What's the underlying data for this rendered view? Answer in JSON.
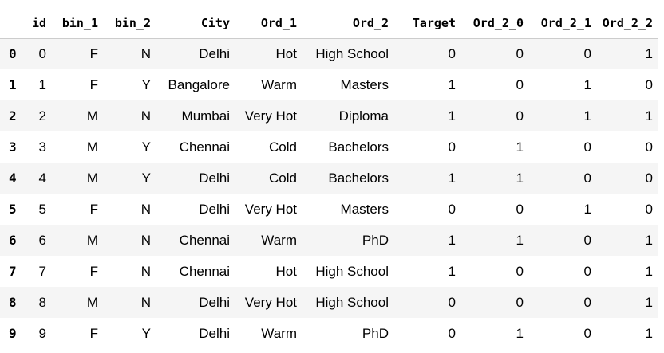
{
  "table": {
    "index_header": "",
    "columns": [
      "id",
      "bin_1",
      "bin_2",
      "City",
      "Ord_1",
      "Ord_2",
      "Target",
      "Ord_2_0",
      "Ord_2_1",
      "Ord_2_2"
    ],
    "rows": [
      {
        "index": "0",
        "cells": [
          "0",
          "F",
          "N",
          "Delhi",
          "Hot",
          "High School",
          "0",
          "0",
          "0",
          "1"
        ]
      },
      {
        "index": "1",
        "cells": [
          "1",
          "F",
          "Y",
          "Bangalore",
          "Warm",
          "Masters",
          "1",
          "0",
          "1",
          "0"
        ]
      },
      {
        "index": "2",
        "cells": [
          "2",
          "M",
          "N",
          "Mumbai",
          "Very Hot",
          "Diploma",
          "1",
          "0",
          "1",
          "1"
        ]
      },
      {
        "index": "3",
        "cells": [
          "3",
          "M",
          "Y",
          "Chennai",
          "Cold",
          "Bachelors",
          "0",
          "1",
          "0",
          "0"
        ]
      },
      {
        "index": "4",
        "cells": [
          "4",
          "M",
          "Y",
          "Delhi",
          "Cold",
          "Bachelors",
          "1",
          "1",
          "0",
          "0"
        ]
      },
      {
        "index": "5",
        "cells": [
          "5",
          "F",
          "N",
          "Delhi",
          "Very Hot",
          "Masters",
          "0",
          "0",
          "1",
          "0"
        ]
      },
      {
        "index": "6",
        "cells": [
          "6",
          "M",
          "N",
          "Chennai",
          "Warm",
          "PhD",
          "1",
          "1",
          "0",
          "1"
        ]
      },
      {
        "index": "7",
        "cells": [
          "7",
          "F",
          "N",
          "Chennai",
          "Hot",
          "High School",
          "1",
          "0",
          "0",
          "1"
        ]
      },
      {
        "index": "8",
        "cells": [
          "8",
          "M",
          "N",
          "Delhi",
          "Very Hot",
          "High School",
          "0",
          "0",
          "0",
          "1"
        ]
      },
      {
        "index": "9",
        "cells": [
          "9",
          "F",
          "Y",
          "Delhi",
          "Warm",
          "PhD",
          "0",
          "1",
          "0",
          "1"
        ]
      }
    ]
  }
}
